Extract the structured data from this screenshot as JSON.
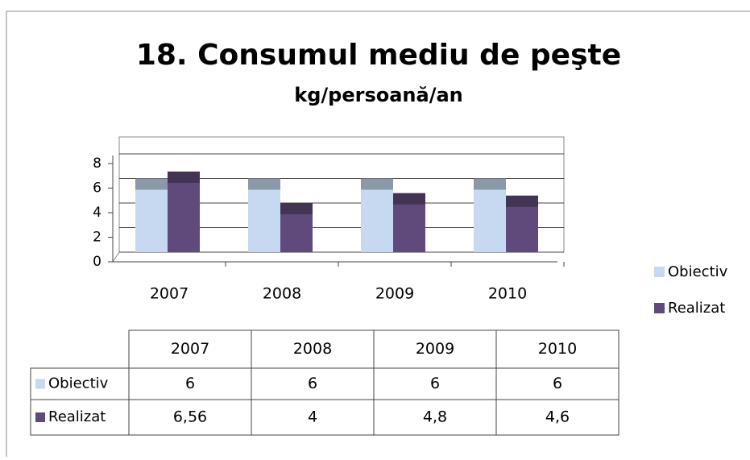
{
  "chart_data": {
    "type": "bar",
    "title": "18. Consumul mediu de peşte",
    "subtitle": "kg/persoană/an",
    "categories": [
      "2007",
      "2008",
      "2009",
      "2010"
    ],
    "series": [
      {
        "name": "Obiectiv",
        "color": "#c6d9f1",
        "values": [
          6,
          6,
          6,
          6
        ]
      },
      {
        "name": "Realizat",
        "color": "#604a7b",
        "values": [
          6.56,
          4,
          4.8,
          4.6
        ],
        "value_labels": [
          "6,56",
          "4",
          "4,8",
          "4,6"
        ]
      }
    ],
    "ylim": [
      0,
      8
    ],
    "yticks": [
      0,
      2,
      4,
      6,
      8
    ],
    "grid": true,
    "legend": "right"
  }
}
